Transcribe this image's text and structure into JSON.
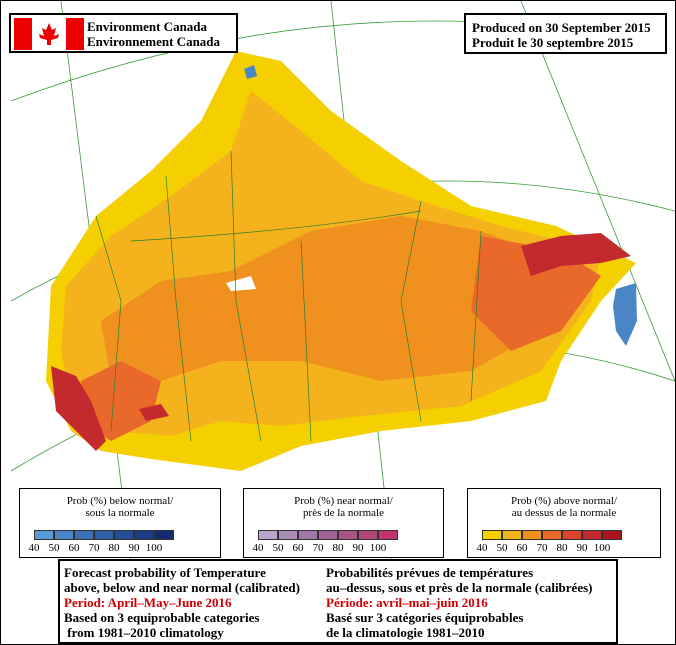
{
  "header": {
    "left": [
      "Environment Canada",
      "Environnement Canada"
    ],
    "right": [
      "Produced on 30 September 2015",
      "Produit le 30 septembre 2015"
    ]
  },
  "legends": [
    {
      "title": [
        "Prob (%) below normal/",
        "sous la normale"
      ],
      "ticks": [
        40,
        50,
        60,
        70,
        80,
        90,
        100
      ],
      "colors": [
        "#5b9bd5",
        "#4a86c5",
        "#3b72b5",
        "#2f5fa5",
        "#244d95",
        "#1b3c85",
        "#132c70"
      ]
    },
    {
      "title": [
        "Prob (%) near normal/",
        "près de la normale"
      ],
      "ticks": [
        40,
        50,
        60,
        70,
        80,
        90,
        100
      ],
      "colors": [
        "#b8a5c8",
        "#a98cb8",
        "#a077a8",
        "#a06496",
        "#a85486",
        "#b34678",
        "#c0366c"
      ]
    },
    {
      "title": [
        "Prob (%) above normal/",
        "au dessus de la normale"
      ],
      "ticks": [
        40,
        50,
        60,
        70,
        80,
        90,
        100
      ],
      "colors": [
        "#f5d000",
        "#f4b21c",
        "#f0901f",
        "#e8692a",
        "#d8452a",
        "#c22a2e",
        "#a8141e"
      ]
    }
  ],
  "footer": {
    "left": [
      "Forecast probability of Temperature",
      "above, below and near normal (calibrated)",
      "Period: April–May–June 2016",
      "Based on 3 equiprobable categories",
      " from 1981–2010 climatology"
    ],
    "right": [
      "Probabilités prévues de températures",
      "au–dessus, sous et près de la normale (calibrées)",
      "Période: avril–mai–juin 2016",
      "Basé sur 3 catégories équiprobables",
      "de la climatologie 1981–2010"
    ]
  }
}
